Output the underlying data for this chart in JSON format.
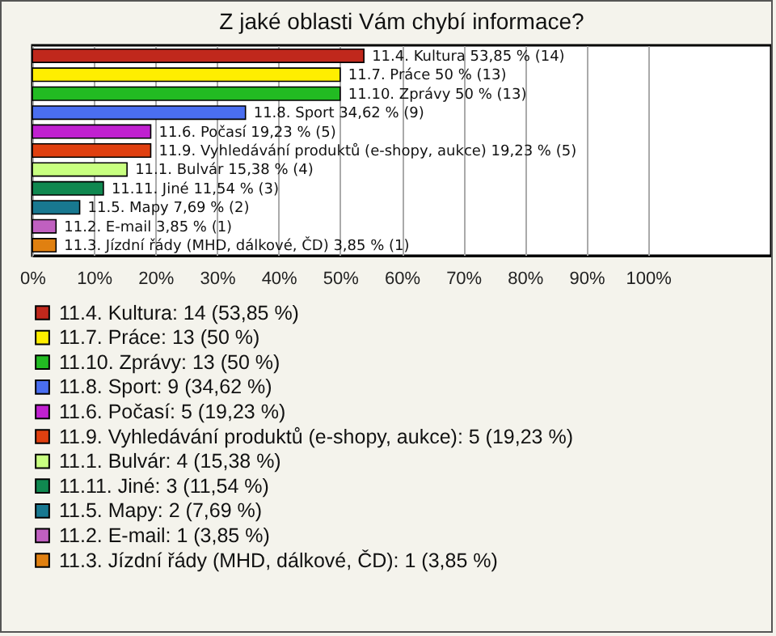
{
  "chart_data": {
    "type": "bar",
    "orientation": "horizontal",
    "title": "Z jaké oblasti Vám chybí informace?",
    "categories": [
      null,
      null,
      null,
      null,
      null,
      null,
      null,
      null,
      null,
      null,
      null
    ],
    "series": [
      {
        "name": "11.4. Kultura: 14 (53,85 %)",
        "color": "#c0281c",
        "values": [
          53.85,
          null,
          null,
          null,
          null,
          null,
          null,
          null,
          null,
          null,
          null
        ],
        "value_labels": [
          "11.4. Kultura 53,85 % (14)",
          null,
          null,
          null,
          null,
          null,
          null,
          null,
          null,
          null,
          null
        ]
      },
      {
        "name": "11.7. Práce: 13 (50 %)",
        "color": "#ffee00",
        "values": [
          null,
          50,
          null,
          null,
          null,
          null,
          null,
          null,
          null,
          null,
          null
        ],
        "value_labels": [
          null,
          "11.7. Práce 50 % (13)",
          null,
          null,
          null,
          null,
          null,
          null,
          null,
          null,
          null
        ]
      },
      {
        "name": "11.10. Zprávy: 13 (50 %)",
        "color": "#22bb22",
        "values": [
          null,
          null,
          50,
          null,
          null,
          null,
          null,
          null,
          null,
          null,
          null
        ],
        "value_labels": [
          null,
          null,
          "11.10. Zprávy 50 % (13)",
          null,
          null,
          null,
          null,
          null,
          null,
          null,
          null
        ]
      },
      {
        "name": "11.8. Sport: 9 (34,62 %)",
        "color": "#4a6ef0",
        "values": [
          null,
          null,
          null,
          34.62,
          null,
          null,
          null,
          null,
          null,
          null,
          null
        ],
        "value_labels": [
          null,
          null,
          null,
          "11.8. Sport 34,62 % (9)",
          null,
          null,
          null,
          null,
          null,
          null,
          null
        ]
      },
      {
        "name": "11.6. Počasí: 5 (19,23 %)",
        "color": "#c020d0",
        "values": [
          null,
          null,
          null,
          null,
          19.23,
          null,
          null,
          null,
          null,
          null,
          null
        ],
        "value_labels": [
          null,
          null,
          null,
          null,
          "11.6. Počasí 19,23 % (5)",
          null,
          null,
          null,
          null,
          null,
          null
        ]
      },
      {
        "name": "11.9. Vyhledávání produktů (e-shopy, aukce): 5 (19,23 %)",
        "color": "#e04010",
        "values": [
          null,
          null,
          null,
          null,
          null,
          19.23,
          null,
          null,
          null,
          null,
          null
        ],
        "value_labels": [
          null,
          null,
          null,
          null,
          null,
          "11.9. Vyhledávání produktů (e-shopy, aukce) 19,23 % (5)",
          null,
          null,
          null,
          null,
          null
        ]
      },
      {
        "name": "11.1. Bulvár: 4 (15,38 %)",
        "color": "#c8ff80",
        "values": [
          null,
          null,
          null,
          null,
          null,
          null,
          15.38,
          null,
          null,
          null,
          null
        ],
        "value_labels": [
          null,
          null,
          null,
          null,
          null,
          null,
          "11.1. Bulvár 15,38 % (4)",
          null,
          null,
          null,
          null
        ]
      },
      {
        "name": "11.11. Jiné: 3 (11,54 %)",
        "color": "#108850",
        "values": [
          null,
          null,
          null,
          null,
          null,
          null,
          null,
          11.54,
          null,
          null,
          null
        ],
        "value_labels": [
          null,
          null,
          null,
          null,
          null,
          null,
          null,
          "11.11. Jiné 11,54 % (3)",
          null,
          null,
          null
        ]
      },
      {
        "name": "11.5. Mapy: 2 (7,69 %)",
        "color": "#187890",
        "values": [
          null,
          null,
          null,
          null,
          null,
          null,
          null,
          null,
          7.69,
          null,
          null
        ],
        "value_labels": [
          null,
          null,
          null,
          null,
          null,
          null,
          null,
          null,
          "11.5. Mapy 7,69 % (2)",
          null,
          null
        ]
      },
      {
        "name": "11.2. E-mail: 1 (3,85 %)",
        "color": "#c060c0",
        "values": [
          null,
          null,
          null,
          null,
          null,
          null,
          null,
          null,
          null,
          3.85,
          null
        ],
        "value_labels": [
          null,
          null,
          null,
          null,
          null,
          null,
          null,
          null,
          null,
          "11.2. E-mail 3,85 % (1)",
          null
        ]
      },
      {
        "name": "11.3. Jízdní řády (MHD, dálkové, ČD): 1 (3,85 %)",
        "color": "#e08010",
        "values": [
          null,
          null,
          null,
          null,
          null,
          null,
          null,
          null,
          null,
          null,
          3.85
        ],
        "value_labels": [
          null,
          null,
          null,
          null,
          null,
          null,
          null,
          null,
          null,
          null,
          "11.3. Jízdní řády (MHD, dálkové, ČD) 3,85 % (1)"
        ]
      }
    ],
    "xlim": [
      0,
      120
    ],
    "xticks": [
      {
        "value": 0,
        "label": "0%"
      },
      {
        "value": 10,
        "label": "10%"
      },
      {
        "value": 20,
        "label": "20%"
      },
      {
        "value": 30,
        "label": "30%"
      },
      {
        "value": 40,
        "label": "40%"
      },
      {
        "value": 50,
        "label": "50%"
      },
      {
        "value": 60,
        "label": "60%"
      },
      {
        "value": 70,
        "label": "70%"
      },
      {
        "value": 80,
        "label": "80%"
      },
      {
        "value": 90,
        "label": "90%"
      },
      {
        "value": 100,
        "label": "100%"
      }
    ],
    "grid": "x",
    "legend": "bottom",
    "tick_labels": "x"
  }
}
